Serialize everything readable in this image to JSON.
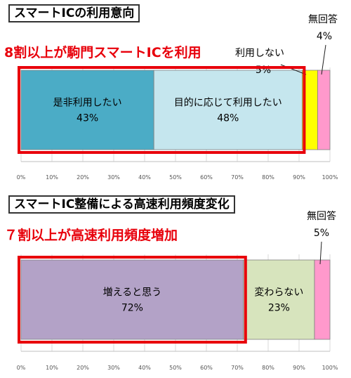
{
  "chart_data": [
    {
      "type": "bar",
      "orientation": "horizontal-stacked",
      "title": "スマートICの利用意向",
      "subtitle": "8割以上が駒門スマートICを利用",
      "series": [
        {
          "name": "是非利用したい",
          "value": 43,
          "label": "43%",
          "color": "#4bacc6"
        },
        {
          "name": "目的に応じて利用したい",
          "value": 48,
          "label": "48%",
          "color": "#c5e6ee"
        },
        {
          "name": "利用しない",
          "value": 5,
          "label": "5%",
          "color": "#ffff00"
        },
        {
          "name": "無回答",
          "value": 4,
          "label": "4%",
          "color": "#ff99cc"
        }
      ],
      "highlight_segments": 2,
      "xlim": [
        0,
        100
      ],
      "ticks": [
        "0%",
        "10%",
        "20%",
        "30%",
        "40%",
        "50%",
        "60%",
        "70%",
        "80%",
        "90%",
        "100%"
      ],
      "grid": true
    },
    {
      "type": "bar",
      "orientation": "horizontal-stacked",
      "title": "スマートIC整備による高速利用頻度変化",
      "subtitle": "７割以上が高速利用頻度増加",
      "series": [
        {
          "name": "増えると思う",
          "value": 72,
          "label": "72%",
          "color": "#b3a2c7"
        },
        {
          "name": "変わらない",
          "value": 23,
          "label": "23%",
          "color": "#d7e4bd"
        },
        {
          "name": "無回答",
          "value": 5,
          "label": "5%",
          "color": "#ff99cc"
        }
      ],
      "highlight_segments": 1,
      "xlim": [
        0,
        100
      ],
      "ticks": [
        "0%",
        "10%",
        "20%",
        "30%",
        "40%",
        "50%",
        "60%",
        "70%",
        "80%",
        "90%",
        "100%"
      ],
      "grid": true
    }
  ],
  "colors": {
    "highlight_border": "#e8000b",
    "headline": "#e8000b",
    "grid": "#d9d9d9"
  }
}
